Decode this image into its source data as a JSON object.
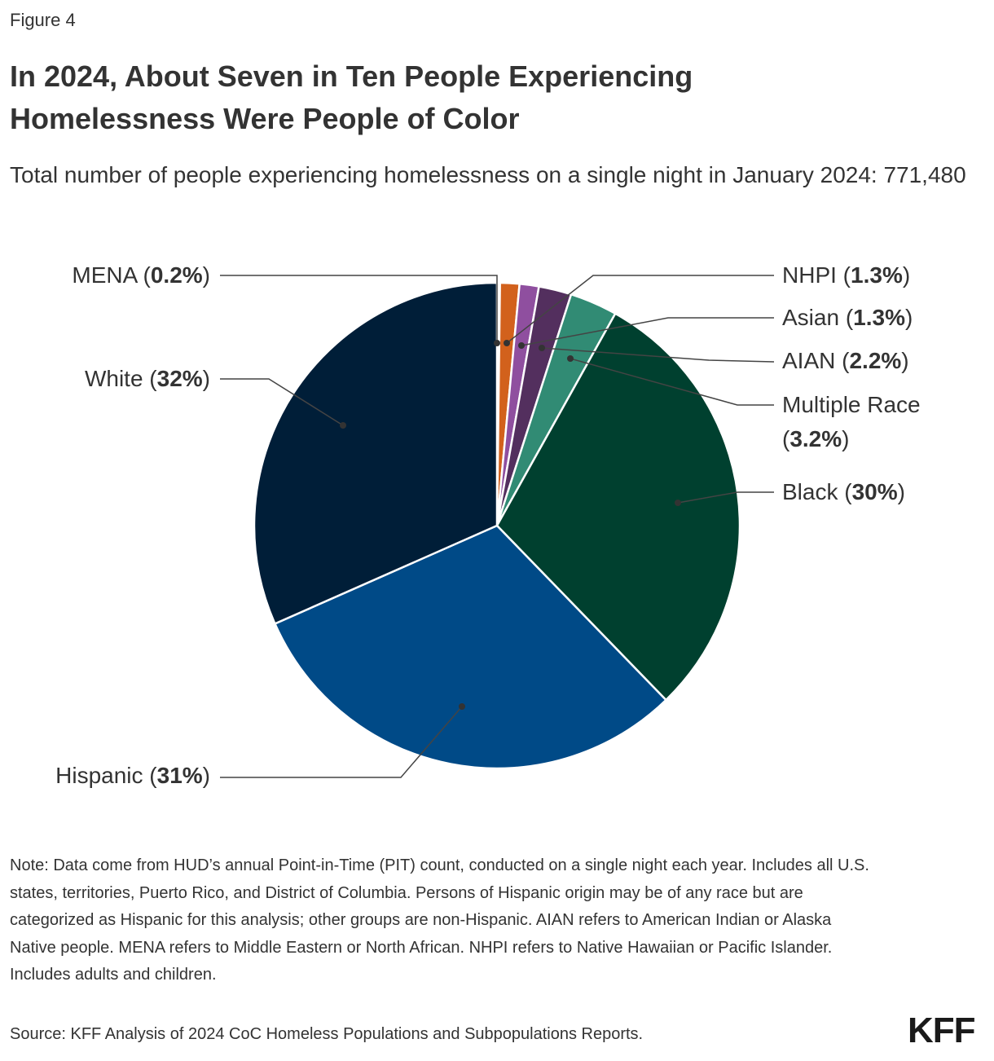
{
  "figure_label": "Figure 4",
  "title": "In 2024, About Seven in Ten People Experiencing Homelessness Were People of Color",
  "subtitle": "Total number of people experiencing homelessness on a single night in January 2024: 771,480",
  "chart_data": {
    "type": "pie",
    "start": "top",
    "direction": "clockwise",
    "slices": [
      {
        "name": "MENA",
        "value": 0.2,
        "label": "0.2%",
        "color": "#f2efe9"
      },
      {
        "name": "NHPI",
        "value": 1.3,
        "label": "1.3%",
        "color": "#d2611c"
      },
      {
        "name": "Asian",
        "value": 1.3,
        "label": "1.3%",
        "color": "#8f4f9f"
      },
      {
        "name": "AIAN",
        "value": 2.2,
        "label": "2.2%",
        "color": "#532f5e"
      },
      {
        "name": "Multiple Race",
        "value": 3.2,
        "label": "3.2%",
        "color": "#318b74"
      },
      {
        "name": "Black",
        "value": 30,
        "label": "30%",
        "color": "#00402f"
      },
      {
        "name": "Hispanic",
        "value": 31,
        "label": "31%",
        "color": "#004a87"
      },
      {
        "name": "White",
        "value": 32,
        "label": "32%",
        "color": "#001e38"
      }
    ]
  },
  "note": "Note: Data come from HUD’s annual Point-in-Time (PIT) count, conducted on a single night each year. Includes all U.S. states, territories, Puerto Rico, and District of Columbia. Persons of Hispanic origin may be of any race but are categorized as Hispanic for this analysis; other groups are non-Hispanic. AIAN refers to American Indian or Alaska Native people. MENA refers to Middle Eastern or North African. NHPI refers to Native Hawaiian or Pacific Islander. Includes adults and children.",
  "source": "Source: KFF Analysis of 2024 CoC Homeless Populations and Subpopulations Reports.",
  "logo": "KFF"
}
